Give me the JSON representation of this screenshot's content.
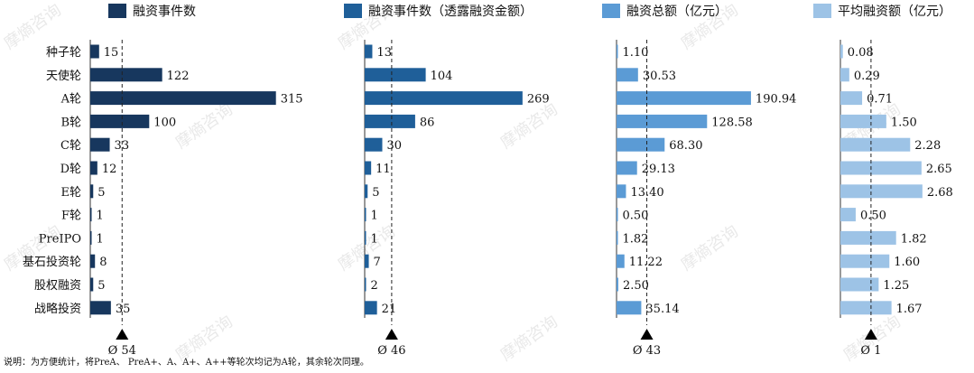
{
  "chart_data": {
    "type": "bar",
    "orientation": "horizontal",
    "categories": [
      "种子轮",
      "天使轮",
      "A轮",
      "B轮",
      "C轮",
      "D轮",
      "E轮",
      "F轮",
      "PreIPO",
      "基石投资轮",
      "股权融资",
      "战略投资"
    ],
    "series": [
      {
        "name": "融资事件数",
        "color": "#17375e",
        "values": [
          15,
          122,
          315,
          100,
          33,
          12,
          5,
          1,
          1,
          8,
          5,
          35
        ],
        "labels": [
          "15",
          "122",
          "315",
          "100",
          "33",
          "12",
          "5",
          "1",
          "1",
          "8",
          "5",
          "35"
        ],
        "avg_label": "Ø 54",
        "avg": 54
      },
      {
        "name": "融资事件数（透露融资金额）",
        "color": "#1f5f99",
        "values": [
          13,
          104,
          269,
          86,
          30,
          11,
          5,
          1,
          1,
          7,
          2,
          21
        ],
        "labels": [
          "13",
          "104",
          "269",
          "86",
          "30",
          "11",
          "5",
          "1",
          "1",
          "7",
          "2",
          "21"
        ],
        "avg_label": "Ø 46",
        "avg": 46
      },
      {
        "name": "融资总额（亿元）",
        "color": "#5b9bd5",
        "values": [
          1.1,
          30.53,
          190.94,
          128.58,
          68.3,
          29.13,
          13.4,
          0.5,
          1.82,
          11.22,
          2.5,
          35.14
        ],
        "labels": [
          "1.10",
          "30.53",
          "190.94",
          "128.58",
          "68.30",
          "29.13",
          "13.40",
          "0.50",
          "1.82",
          "11.22",
          "2.50",
          "35.14"
        ],
        "avg_label": "Ø 43",
        "avg": 43
      },
      {
        "name": "平均融资额（亿元）",
        "color": "#9dc3e6",
        "values": [
          0.08,
          0.29,
          0.71,
          1.5,
          2.28,
          2.65,
          2.68,
          0.5,
          1.82,
          1.6,
          1.25,
          1.67
        ],
        "labels": [
          "0.08",
          "0.29",
          "0.71",
          "1.50",
          "2.28",
          "2.65",
          "2.68",
          "0.50",
          "1.82",
          "1.60",
          "1.25",
          "1.67"
        ],
        "avg_label": "Ø 1",
        "avg": 1
      }
    ],
    "note": "说明：为方便统计，将PreA、 PreA+、A、A+、A++等轮次均记为A轮，其余轮次同理。",
    "watermark": "摩熵咨询"
  }
}
